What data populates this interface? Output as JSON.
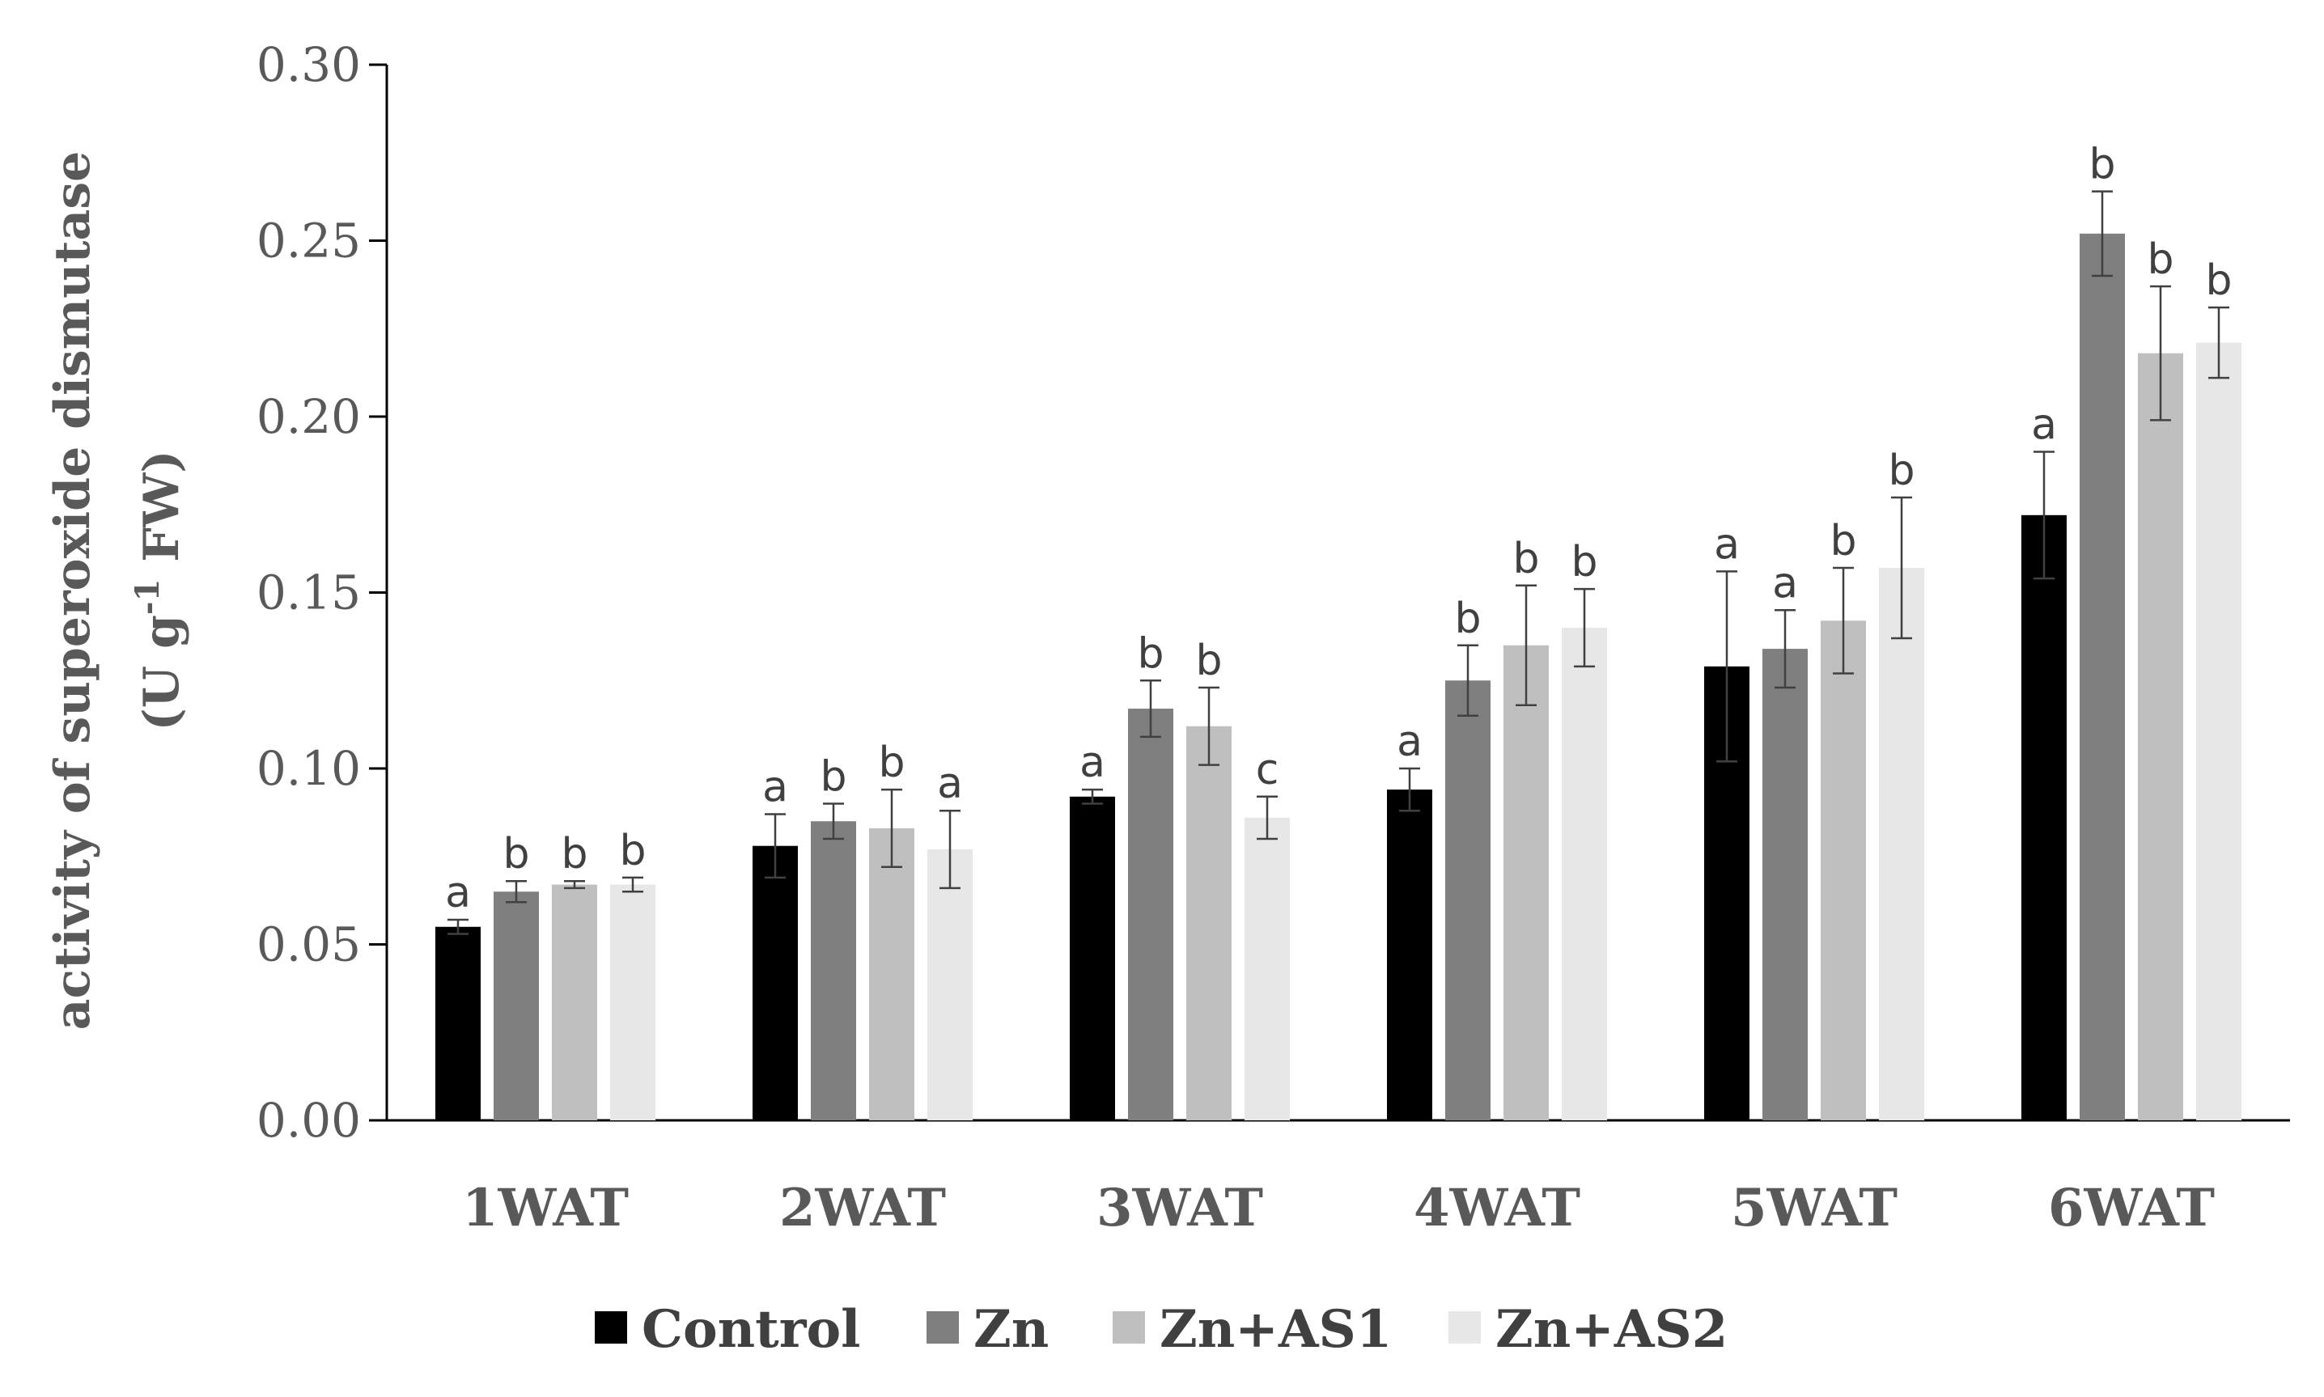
{
  "chart_data": {
    "type": "bar",
    "title": "",
    "xlabel": "",
    "ylabel_line1": "activity of superoxide dismutase",
    "ylabel_line2_prefix": "(U g",
    "ylabel_line2_sup": "-1",
    "ylabel_line2_suffix": " FW)",
    "ylim": [
      0,
      0.3
    ],
    "yticks": [
      "0.00",
      "0.05",
      "0.10",
      "0.15",
      "0.20",
      "0.25",
      "0.30"
    ],
    "ytick_values": [
      0,
      0.05,
      0.1,
      0.15,
      0.2,
      0.25,
      0.3
    ],
    "categories": [
      "1WAT",
      "2WAT",
      "3WAT",
      "4WAT",
      "5WAT",
      "6WAT"
    ],
    "legend_position": "bottom",
    "grid": false,
    "series": [
      {
        "name": "Control",
        "color": "#000000",
        "values": [
          0.055,
          0.078,
          0.092,
          0.094,
          0.129,
          0.172
        ],
        "errors": [
          0.002,
          0.009,
          0.002,
          0.006,
          0.027,
          0.018
        ],
        "letters": [
          "a",
          "a",
          "a",
          "a",
          "a",
          "a"
        ]
      },
      {
        "name": "Zn",
        "color": "#7f7f7f",
        "values": [
          0.065,
          0.085,
          0.117,
          0.125,
          0.134,
          0.252
        ],
        "errors": [
          0.003,
          0.005,
          0.008,
          0.01,
          0.011,
          0.012
        ],
        "letters": [
          "b",
          "b",
          "b",
          "b",
          "a",
          "b"
        ]
      },
      {
        "name": "Zn+AS1",
        "color": "#bfbfbf",
        "values": [
          0.067,
          0.083,
          0.112,
          0.135,
          0.142,
          0.218
        ],
        "errors": [
          0.001,
          0.011,
          0.011,
          0.017,
          0.015,
          0.019
        ],
        "letters": [
          "b",
          "b",
          "b",
          "b",
          "b",
          "b"
        ]
      },
      {
        "name": "Zn+AS2",
        "color": "#e7e7e7",
        "values": [
          0.067,
          0.077,
          0.086,
          0.14,
          0.157,
          0.221
        ],
        "errors": [
          0.002,
          0.011,
          0.006,
          0.011,
          0.02,
          0.01
        ],
        "letters": [
          "b",
          "a",
          "c",
          "b",
          "b",
          "b"
        ]
      }
    ]
  }
}
